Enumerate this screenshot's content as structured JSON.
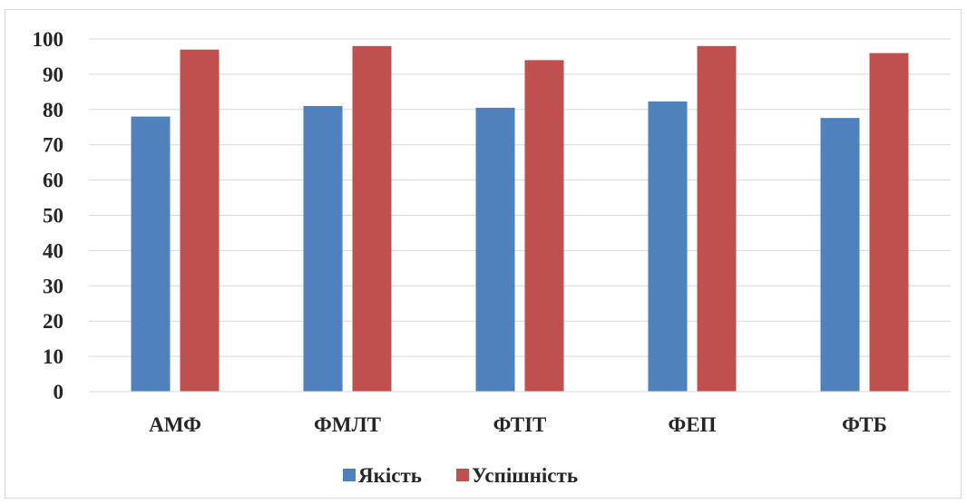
{
  "chart_data": {
    "type": "bar",
    "categories": [
      "АМФ",
      "ФМЛТ",
      "ФТІТ",
      "ФЕП",
      "ФТБ"
    ],
    "series": [
      {
        "name": "Якість",
        "values": [
          78,
          81,
          80.5,
          82.3,
          77.6
        ],
        "color": "#4f81bd"
      },
      {
        "name": "Успішність",
        "values": [
          97,
          98,
          94,
          98,
          96
        ],
        "color": "#c0504d"
      }
    ],
    "title": "",
    "xlabel": "",
    "ylabel": "",
    "ylim": [
      0,
      100
    ],
    "yticks": [
      "0",
      "10",
      "20",
      "30",
      "40",
      "50",
      "60",
      "70",
      "80",
      "90",
      "100"
    ],
    "grid": true,
    "legend_position": "bottom"
  }
}
